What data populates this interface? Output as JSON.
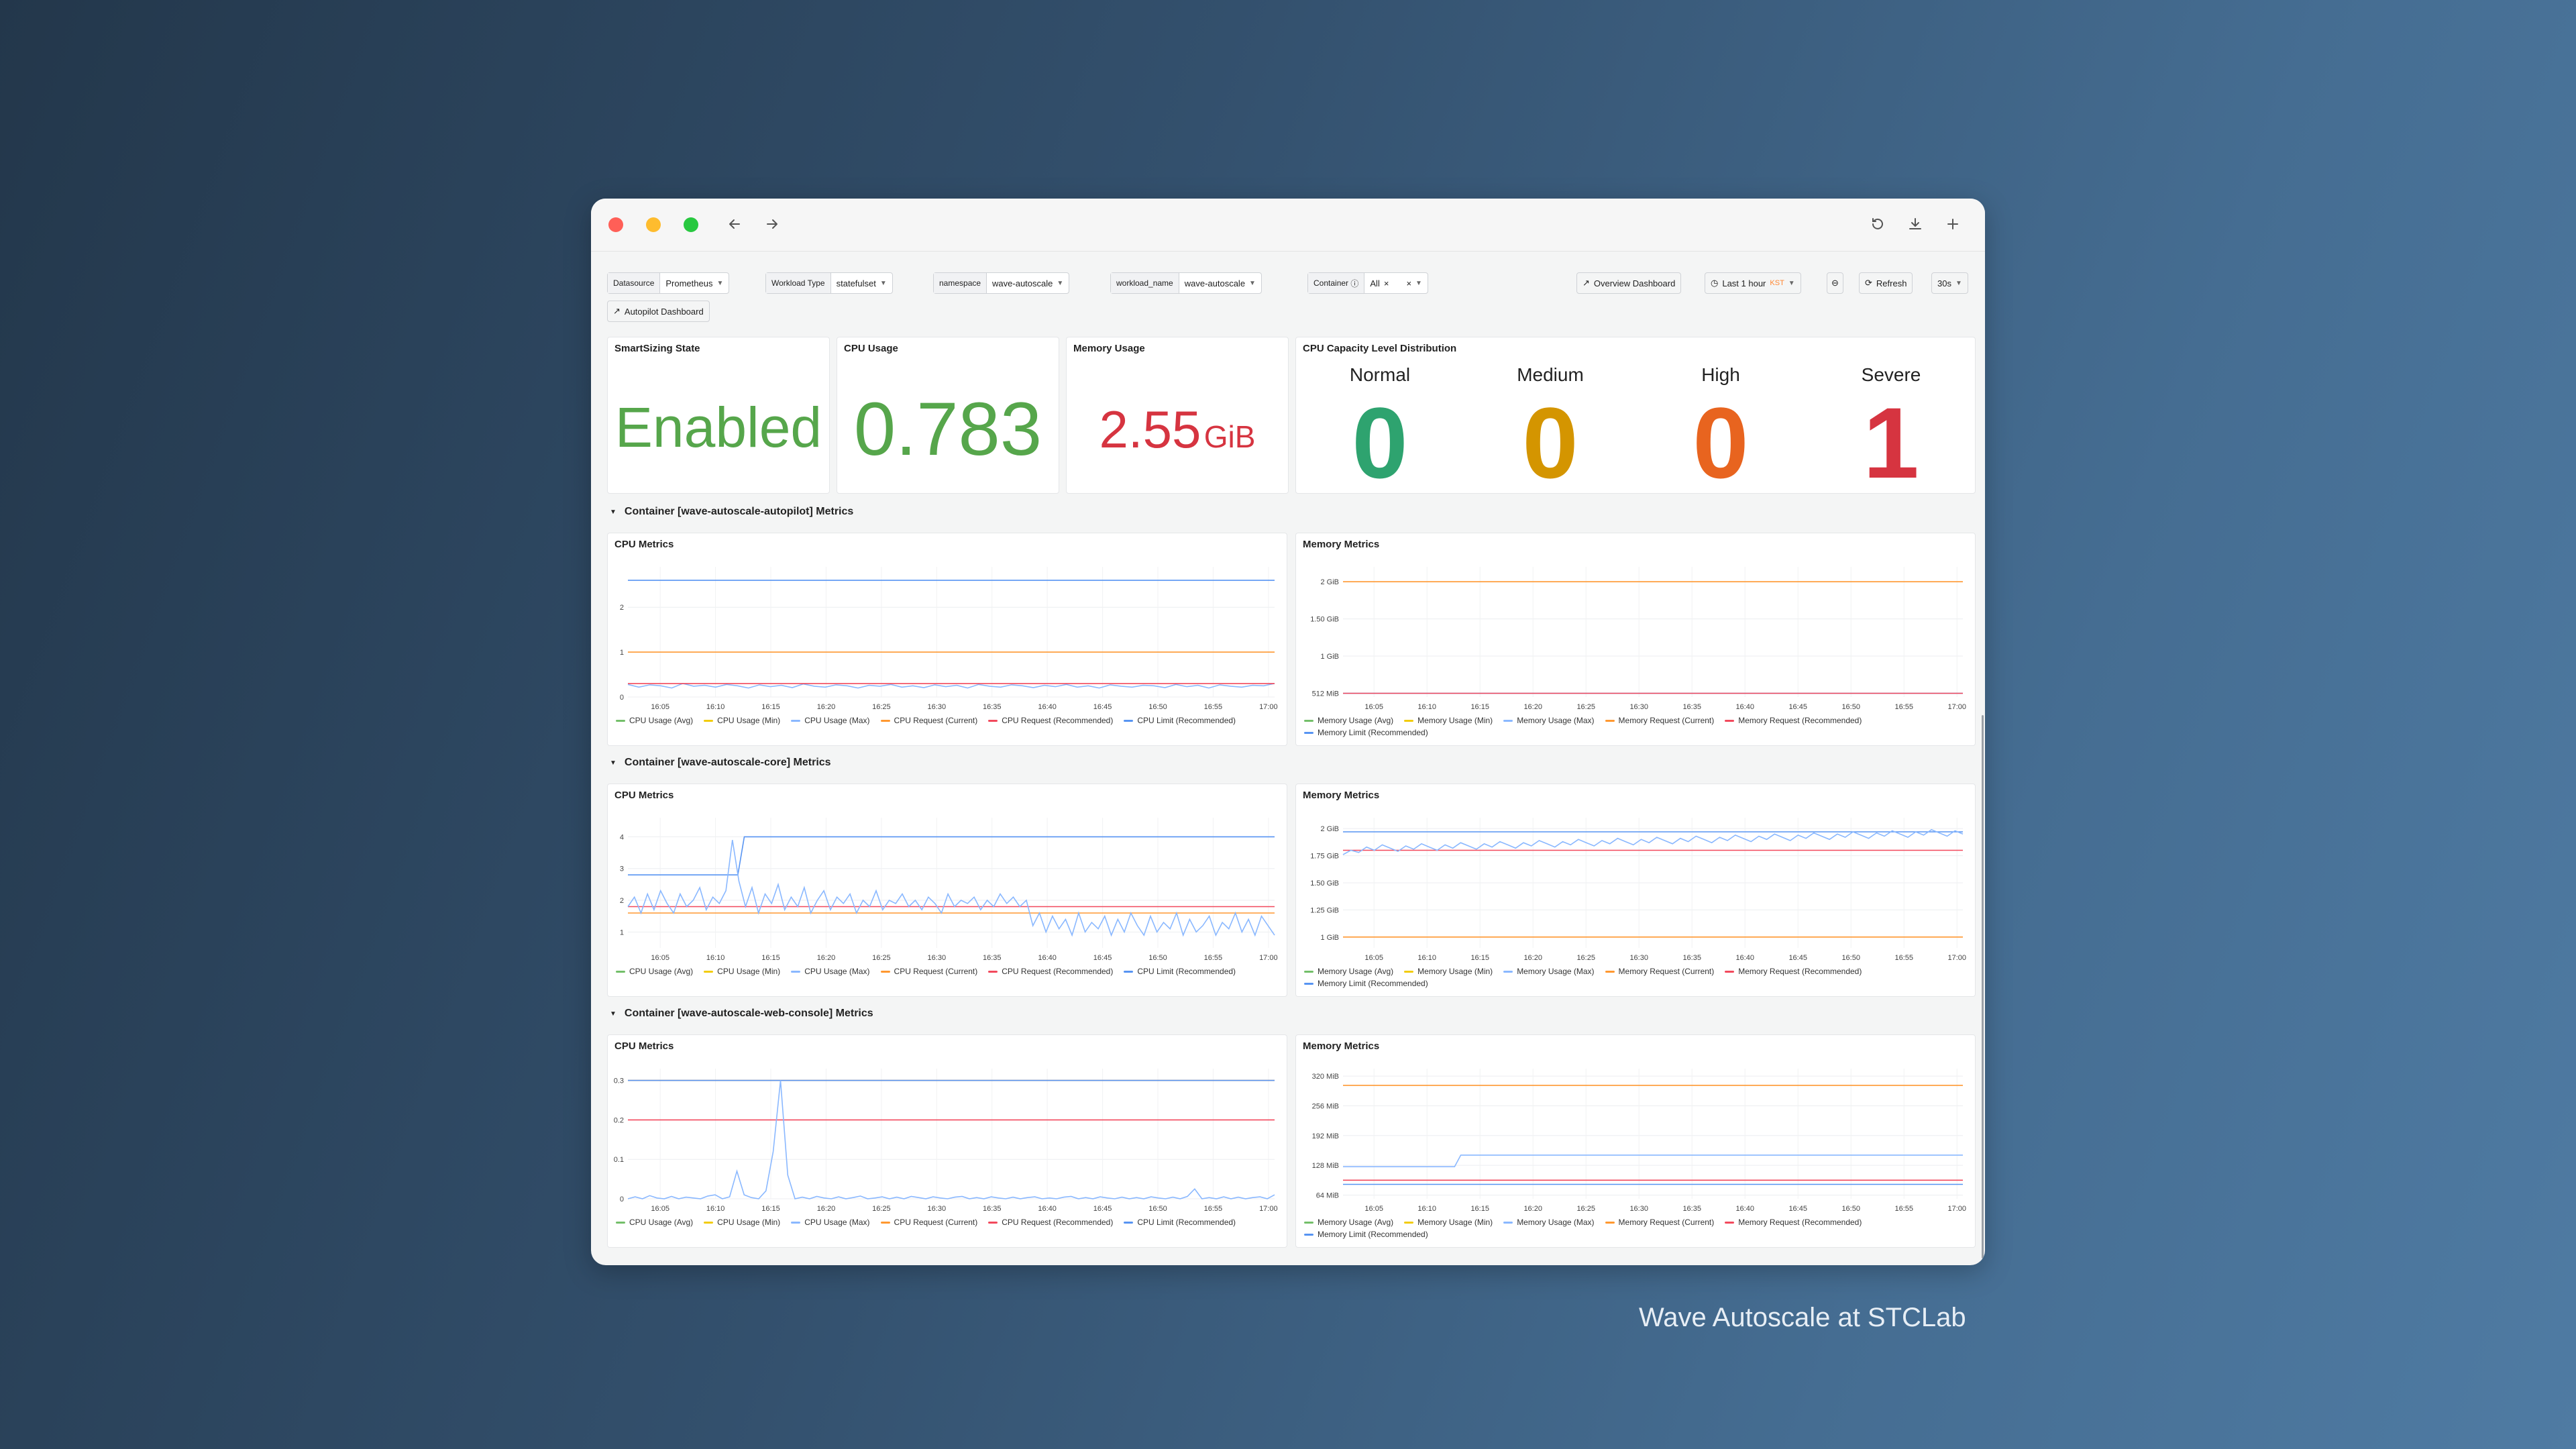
{
  "colors": {
    "avg": "#73bf69",
    "min": "#f2cc0c",
    "max": "#8ab8ff",
    "req_current": "#ff9830",
    "req_recommended": "#f2495c",
    "limit_recommended": "#5794f2",
    "normal": "#2ea36f",
    "medium": "#d49500",
    "high": "#e8641f",
    "severe": "#d63440",
    "enabled": "#56a64b",
    "cpu_usage": "#56a64b",
    "memory_usage": "#d63440"
  },
  "browser": {
    "back_icon": "arrow-left-icon",
    "forward_icon": "arrow-right-icon",
    "reload_icon": "reload-icon",
    "download_icon": "download-icon",
    "newtab_icon": "plus-icon"
  },
  "filters": {
    "datasource": {
      "label": "Datasource",
      "value": "Prometheus"
    },
    "workload_type": {
      "label": "Workload Type",
      "value": "statefulset"
    },
    "namespace": {
      "label": "namespace",
      "value": "wave-autoscale"
    },
    "workload_name": {
      "label": "workload_name",
      "value": "wave-autoscale"
    },
    "container": {
      "label": "Container",
      "value": "All"
    },
    "overview_button": "Overview Dashboard",
    "time_range": "Last 1 hour",
    "timezone": "KST",
    "refresh_button": "Refresh",
    "refresh_interval": "30s",
    "autopilot_button": "Autopilot Dashboard"
  },
  "stats": {
    "smartsizing": {
      "title": "SmartSizing State",
      "value": "Enabled"
    },
    "cpu": {
      "title": "CPU Usage",
      "value": "0.783"
    },
    "memory": {
      "title": "Memory Usage",
      "value": "2.55",
      "unit": "GiB"
    },
    "capacity": {
      "title": "CPU Capacity Level Distribution",
      "levels": [
        {
          "label": "Normal",
          "value": "0"
        },
        {
          "label": "Medium",
          "value": "0"
        },
        {
          "label": "High",
          "value": "0"
        },
        {
          "label": "Severe",
          "value": "1"
        }
      ]
    }
  },
  "legend": {
    "cpu": [
      "CPU Usage (Avg)",
      "CPU Usage (Min)",
      "CPU Usage (Max)",
      "CPU Request (Current)",
      "CPU Request (Recommended)",
      "CPU Limit (Recommended)"
    ],
    "memory": [
      "Memory Usage (Avg)",
      "Memory Usage (Min)",
      "Memory Usage (Max)",
      "Memory Request (Current)",
      "Memory Request (Recommended)",
      "Memory Limit (Recommended)"
    ]
  },
  "sections": [
    {
      "title": "Container [wave-autoscale-autopilot] Metrics"
    },
    {
      "title": "Container [wave-autoscale-core] Metrics"
    },
    {
      "title": "Container [wave-autoscale-web-console] Metrics"
    }
  ],
  "x_ticks": [
    "16:05",
    "16:10",
    "16:15",
    "16:20",
    "16:25",
    "16:30",
    "16:35",
    "16:40",
    "16:45",
    "16:50",
    "16:55",
    "17:00"
  ],
  "chart_data": [
    {
      "type": "line",
      "title": "CPU Metrics",
      "container": "wave-autoscale-autopilot",
      "ylim": [
        0,
        2.9
      ],
      "yticks": [
        0,
        1,
        2
      ],
      "ytick_labels": [
        "0",
        "1",
        "2"
      ],
      "series": [
        {
          "name": "CPU Request (Current)",
          "key": "req_current",
          "values": [
            1
          ]
        },
        {
          "name": "CPU Limit (Recommended)",
          "key": "limit_recommended",
          "values": [
            2.6
          ]
        },
        {
          "name": "CPU Usage (Max)",
          "key": "max",
          "noisy": true,
          "values": [
            0.28,
            0.22,
            0.27,
            0.25,
            0.2,
            0.3,
            0.24,
            0.26,
            0.22,
            0.28,
            0.25,
            0.2,
            0.27,
            0.23,
            0.26,
            0.21,
            0.29,
            0.24,
            0.22,
            0.27,
            0.25,
            0.2,
            0.26,
            0.24,
            0.28,
            0.22,
            0.25,
            0.21,
            0.27,
            0.23,
            0.26,
            0.2,
            0.28,
            0.24,
            0.22,
            0.27,
            0.25,
            0.21,
            0.26,
            0.23,
            0.28,
            0.22,
            0.25,
            0.2,
            0.27,
            0.24,
            0.22,
            0.26,
            0.25,
            0.21,
            0.28,
            0.23,
            0.26,
            0.2,
            0.27,
            0.24,
            0.22,
            0.26,
            0.25,
            0.3
          ]
        },
        {
          "name": "CPU Request (Recommended)",
          "key": "req_recommended",
          "values": [
            0.3
          ]
        }
      ]
    },
    {
      "type": "line",
      "title": "Memory Metrics",
      "container": "wave-autoscale-autopilot",
      "ylim": [
        0.45,
        2.2
      ],
      "yticks": [
        0.5,
        1,
        1.5,
        2
      ],
      "ytick_labels": [
        "512 MiB",
        "1 GiB",
        "1.50 GiB",
        "2 GiB"
      ],
      "series": [
        {
          "name": "Memory Request (Current)",
          "key": "req_current",
          "values": [
            2
          ]
        },
        {
          "name": "Memory Limit (Recommended)",
          "key": "limit_recommended",
          "values": [
            0.5
          ]
        },
        {
          "name": "Memory Request (Recommended)",
          "key": "req_recommended",
          "values": [
            0.5
          ]
        }
      ]
    },
    {
      "type": "line",
      "title": "CPU Metrics",
      "container": "wave-autoscale-core",
      "ylim": [
        0.5,
        4.6
      ],
      "yticks": [
        1,
        2,
        3,
        4
      ],
      "ytick_labels": [
        "1",
        "2",
        "3",
        "4"
      ],
      "series": [
        {
          "name": "CPU Request (Current)",
          "key": "req_current",
          "values": [
            1.6
          ]
        },
        {
          "name": "CPU Request (Recommended)",
          "key": "req_recommended",
          "values": [
            1.8
          ]
        },
        {
          "name": "CPU Limit (Recommended)",
          "key": "limit_recommended",
          "step_at": 0.17,
          "values": [
            2.8,
            4
          ]
        },
        {
          "name": "CPU Usage (Max)",
          "key": "max",
          "values": [
            1.8,
            2.1,
            1.6,
            2.2,
            1.7,
            2.3,
            1.9,
            1.6,
            2.2,
            1.8,
            2.0,
            2.4,
            1.7,
            2.1,
            1.9,
            2.3,
            3.9,
            2.6,
            1.8,
            2.4,
            1.6,
            2.2,
            1.9,
            2.5,
            1.7,
            2.1,
            1.8,
            2.4,
            1.6,
            2.0,
            2.3,
            1.7,
            2.1,
            1.9,
            2.2,
            1.6,
            2.0,
            1.8,
            2.3,
            1.7,
            2.0,
            1.9,
            2.2,
            1.8,
            2.0,
            1.7,
            2.1,
            1.9,
            1.6,
            2.2,
            1.8,
            2.0,
            1.9,
            2.1,
            1.7,
            2.0,
            1.8,
            2.2,
            1.9,
            2.1,
            1.8,
            2.0,
            1.2,
            1.6,
            1.0,
            1.5,
            1.1,
            1.4,
            0.9,
            1.6,
            1.0,
            1.3,
            1.1,
            1.5,
            0.9,
            1.4,
            1.0,
            1.6,
            1.2,
            0.9,
            1.5,
            1.0,
            1.3,
            1.1,
            1.6,
            0.9,
            1.4,
            1.0,
            1.2,
            1.5,
            0.9,
            1.3,
            1.1,
            1.6,
            1.0,
            1.4,
            0.9,
            1.5,
            1.2,
            0.9
          ]
        }
      ]
    },
    {
      "type": "line",
      "title": "Memory Metrics",
      "container": "wave-autoscale-core",
      "ylim": [
        0.9,
        2.1
      ],
      "yticks": [
        1,
        1.25,
        1.5,
        1.75,
        2
      ],
      "ytick_labels": [
        "1 GiB",
        "1.25 GiB",
        "1.50 GiB",
        "1.75 GiB",
        "2 GiB"
      ],
      "series": [
        {
          "name": "Memory Request (Current)",
          "key": "req_current",
          "values": [
            1
          ]
        },
        {
          "name": "Memory Request (Recommended)",
          "key": "req_recommended",
          "values": [
            1.8
          ]
        },
        {
          "name": "Memory Limit (Recommended)",
          "key": "limit_recommended",
          "values": [
            1.97
          ]
        },
        {
          "name": "Memory Usage (Max)",
          "key": "max",
          "values": [
            1.76,
            1.8,
            1.78,
            1.83,
            1.8,
            1.85,
            1.82,
            1.79,
            1.84,
            1.81,
            1.86,
            1.83,
            1.8,
            1.85,
            1.82,
            1.87,
            1.84,
            1.81,
            1.86,
            1.83,
            1.88,
            1.85,
            1.82,
            1.87,
            1.84,
            1.89,
            1.86,
            1.83,
            1.88,
            1.85,
            1.9,
            1.87,
            1.84,
            1.89,
            1.86,
            1.91,
            1.88,
            1.85,
            1.9,
            1.87,
            1.92,
            1.89,
            1.86,
            1.91,
            1.88,
            1.93,
            1.9,
            1.87,
            1.92,
            1.89,
            1.94,
            1.91,
            1.88,
            1.93,
            1.9,
            1.95,
            1.92,
            1.89,
            1.94,
            1.91,
            1.96,
            1.93,
            1.9,
            1.95,
            1.92,
            1.97,
            1.94,
            1.91,
            1.96,
            1.93,
            1.98,
            1.95,
            1.92,
            1.97,
            1.94,
            1.99,
            1.96,
            1.93,
            1.98,
            1.95
          ]
        }
      ]
    },
    {
      "type": "line",
      "title": "CPU Metrics",
      "container": "wave-autoscale-web-console",
      "ylim": [
        0,
        0.33
      ],
      "yticks": [
        0,
        0.1,
        0.2,
        0.3
      ],
      "ytick_labels": [
        "0",
        "0.1",
        "0.2",
        "0.3"
      ],
      "series": [
        {
          "name": "CPU Request (Current)",
          "key": "req_current",
          "values": [
            0.3
          ]
        },
        {
          "name": "CPU Request (Recommended)",
          "key": "req_recommended",
          "values": [
            0.2
          ]
        },
        {
          "name": "CPU Limit (Recommended)",
          "key": "limit_recommended",
          "values": [
            0.3
          ]
        },
        {
          "name": "CPU Usage (Max)",
          "key": "max",
          "values": [
            0.0,
            0.005,
            0.0,
            0.008,
            0.002,
            0.0,
            0.006,
            0.0,
            0.004,
            0.002,
            0.0,
            0.007,
            0.01,
            0.0,
            0.005,
            0.07,
            0.01,
            0.003,
            0.0,
            0.02,
            0.12,
            0.3,
            0.06,
            0.0,
            0.004,
            0.0,
            0.006,
            0.002,
            0.0,
            0.005,
            0.0,
            0.003,
            0.007,
            0.0,
            0.002,
            0.005,
            0.0,
            0.004,
            0.0,
            0.006,
            0.003,
            0.0,
            0.005,
            0.002,
            0.0,
            0.004,
            0.006,
            0.0,
            0.003,
            0.0,
            0.005,
            0.002,
            0.0,
            0.004,
            0.0,
            0.003,
            0.005,
            0.0,
            0.002,
            0.0,
            0.004,
            0.006,
            0.0,
            0.003,
            0.0,
            0.005,
            0.002,
            0.0,
            0.004,
            0.0,
            0.003,
            0.0,
            0.005,
            0.002,
            0.0,
            0.004,
            0.0,
            0.006,
            0.025,
            0.0,
            0.003,
            0.0,
            0.005,
            0.0,
            0.004,
            0.0,
            0.003,
            0.005,
            0.0,
            0.01
          ]
        }
      ]
    },
    {
      "type": "line",
      "title": "Memory Metrics",
      "container": "wave-autoscale-web-console",
      "ylim": [
        56,
        336
      ],
      "yticks": [
        64,
        128,
        192,
        256,
        320
      ],
      "ytick_labels": [
        "64 MiB",
        "128 MiB",
        "192 MiB",
        "256 MiB",
        "320 MiB"
      ],
      "series": [
        {
          "name": "Memory Request (Current)",
          "key": "req_current",
          "values": [
            300
          ]
        },
        {
          "name": "Memory Request (Recommended)",
          "key": "req_recommended",
          "values": [
            96
          ]
        },
        {
          "name": "Memory Limit (Recommended)",
          "key": "limit_recommended",
          "values": [
            87
          ]
        },
        {
          "name": "Memory Usage (Max)",
          "key": "max",
          "step_at": 0.18,
          "values": [
            125,
            150
          ]
        }
      ]
    }
  ]
}
